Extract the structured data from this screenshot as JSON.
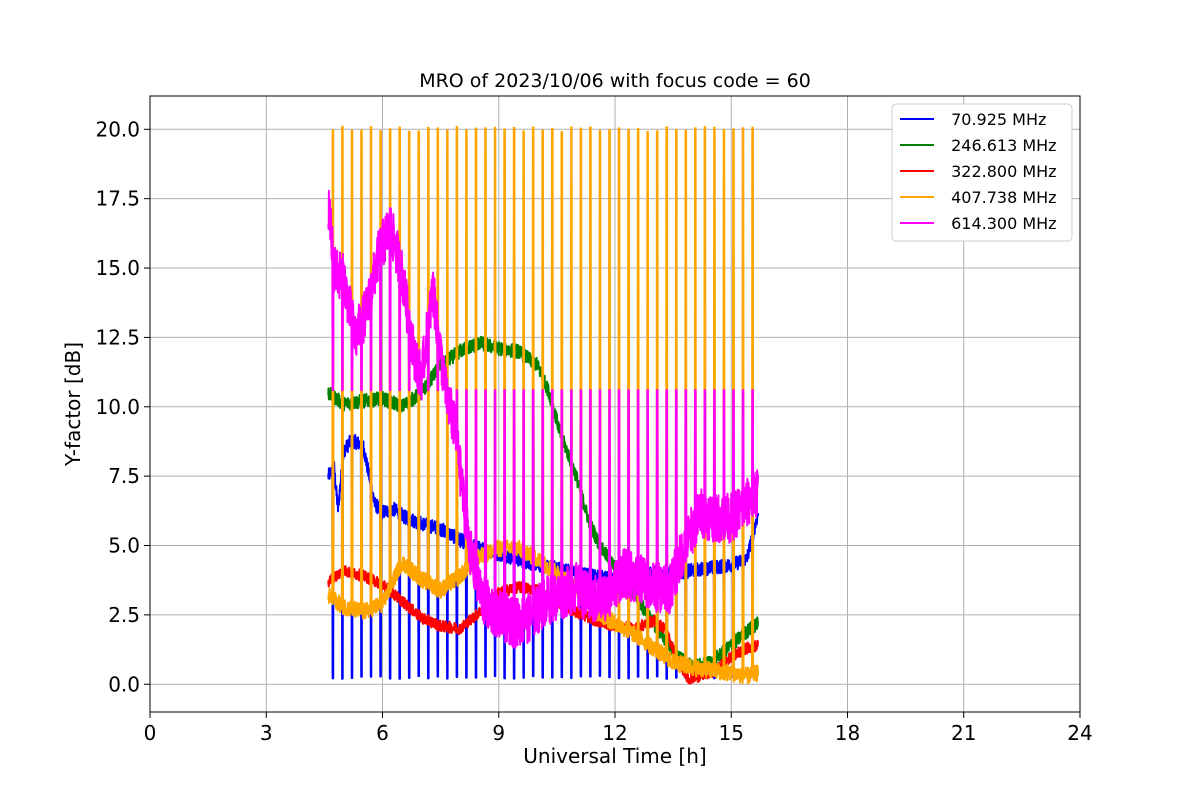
{
  "chart_data": {
    "type": "line",
    "title": "MRO of 2023/10/06 with focus code = 60",
    "xlabel": "Universal Time [h]",
    "ylabel": "Y-factor [dB]",
    "xlim": [
      0,
      24
    ],
    "ylim": [
      -1.0,
      21.2
    ],
    "xticks": [
      0,
      3,
      6,
      9,
      12,
      15,
      18,
      21,
      24
    ],
    "xtick_labels": [
      "0",
      "3",
      "6",
      "9",
      "12",
      "15",
      "18",
      "21",
      "24"
    ],
    "yticks": [
      0,
      2.5,
      5,
      7.5,
      10,
      12.5,
      15,
      17.5,
      20
    ],
    "ytick_labels": [
      "0.0",
      "2.5",
      "5.0",
      "7.5",
      "10.0",
      "12.5",
      "15.0",
      "17.5",
      "20.0"
    ],
    "grid": true,
    "legend_position": "top-right",
    "calibration_spikes": {
      "start_hour": 4.72,
      "end_hour": 15.55,
      "count": 45,
      "orange_spike_peak_db": 20.0,
      "magenta_spike_peak_db": 10.6,
      "blue_spike_dip_db": 0.2
    },
    "series": [
      {
        "name": " 70.925 MHz",
        "color": "#0000ff",
        "x": [
          4.6,
          4.75,
          4.85,
          5.0,
          5.2,
          5.5,
          5.8,
          6.0,
          6.3,
          6.6,
          7.0,
          7.5,
          8.0,
          8.5,
          9.0,
          9.5,
          10.0,
          10.5,
          11.0,
          11.5,
          12.0,
          12.5,
          13.0,
          13.5,
          14.0,
          14.5,
          15.0,
          15.4,
          15.7
        ],
        "y": [
          7.5,
          7.8,
          6.3,
          8.4,
          8.8,
          8.6,
          6.5,
          6.2,
          6.3,
          6.0,
          5.8,
          5.6,
          5.2,
          4.9,
          4.7,
          4.5,
          4.3,
          4.2,
          4.0,
          3.9,
          3.8,
          3.9,
          4.0,
          4.0,
          4.1,
          4.2,
          4.3,
          4.5,
          6.2
        ]
      },
      {
        "name": " 246.613 MHz",
        "color": "#008000",
        "x": [
          4.6,
          5.0,
          5.5,
          6.0,
          6.5,
          7.0,
          7.5,
          8.0,
          8.5,
          9.0,
          9.5,
          10.0,
          10.3,
          10.6,
          11.0,
          11.3,
          11.6,
          12.0,
          12.5,
          13.0,
          13.3,
          13.6,
          14.0,
          14.5,
          15.0,
          15.4,
          15.7
        ],
        "y": [
          10.5,
          10.1,
          10.2,
          10.3,
          10.0,
          10.5,
          11.5,
          12.0,
          12.3,
          12.1,
          12.0,
          11.5,
          10.5,
          9.0,
          7.5,
          6.0,
          5.0,
          4.2,
          3.2,
          2.2,
          1.6,
          1.0,
          0.6,
          0.8,
          1.4,
          1.9,
          2.2
        ]
      },
      {
        "name": " 322.800 MHz",
        "color": "#ff0000",
        "x": [
          4.6,
          5.0,
          5.5,
          6.0,
          6.5,
          7.0,
          7.5,
          8.0,
          8.5,
          9.0,
          9.5,
          10.0,
          10.5,
          11.0,
          11.5,
          12.0,
          12.5,
          13.0,
          13.3,
          13.6,
          13.9,
          14.2,
          14.6,
          15.0,
          15.4,
          15.7
        ],
        "y": [
          3.7,
          4.1,
          3.9,
          3.6,
          3.0,
          2.4,
          2.1,
          2.0,
          2.6,
          3.3,
          3.5,
          3.4,
          3.0,
          2.6,
          2.3,
          2.1,
          2.0,
          2.3,
          2.0,
          0.9,
          0.2,
          0.3,
          0.5,
          1.0,
          1.3,
          1.4
        ]
      },
      {
        "name": " 407.738 MHz",
        "color": "#ffa500",
        "x": [
          4.6,
          5.0,
          5.5,
          6.0,
          6.5,
          7.0,
          7.5,
          8.0,
          8.5,
          9.0,
          9.5,
          10.0,
          10.5,
          11.0,
          11.5,
          12.0,
          12.5,
          13.0,
          13.5,
          14.0,
          14.5,
          15.0,
          15.4,
          15.7
        ],
        "y": [
          3.2,
          2.8,
          2.6,
          2.9,
          4.4,
          3.8,
          3.4,
          3.9,
          4.6,
          4.9,
          4.9,
          4.5,
          4.0,
          3.5,
          2.6,
          2.2,
          1.8,
          1.3,
          0.8,
          0.6,
          0.5,
          0.4,
          0.3,
          0.4
        ]
      },
      {
        "name": " 614.300 MHz",
        "color": "#ff00ff",
        "x": [
          4.6,
          4.75,
          5.0,
          5.3,
          5.6,
          5.9,
          6.2,
          6.5,
          6.8,
          7.0,
          7.3,
          7.6,
          7.9,
          8.1,
          8.3,
          8.6,
          9.0,
          9.4,
          9.8,
          10.2,
          10.6,
          11.0,
          11.4,
          11.8,
          12.2,
          12.6,
          13.0,
          13.4,
          13.8,
          14.2,
          14.6,
          15.0,
          15.4,
          15.7
        ],
        "y": [
          17.4,
          15.0,
          14.6,
          12.5,
          13.5,
          15.5,
          16.5,
          14.8,
          12.0,
          11.0,
          14.2,
          10.8,
          9.0,
          6.5,
          4.5,
          3.0,
          2.5,
          2.2,
          2.4,
          3.0,
          3.2,
          3.5,
          3.0,
          3.2,
          4.0,
          3.8,
          3.5,
          3.4,
          5.0,
          6.2,
          6.0,
          6.0,
          6.5,
          7.0
        ]
      }
    ]
  }
}
